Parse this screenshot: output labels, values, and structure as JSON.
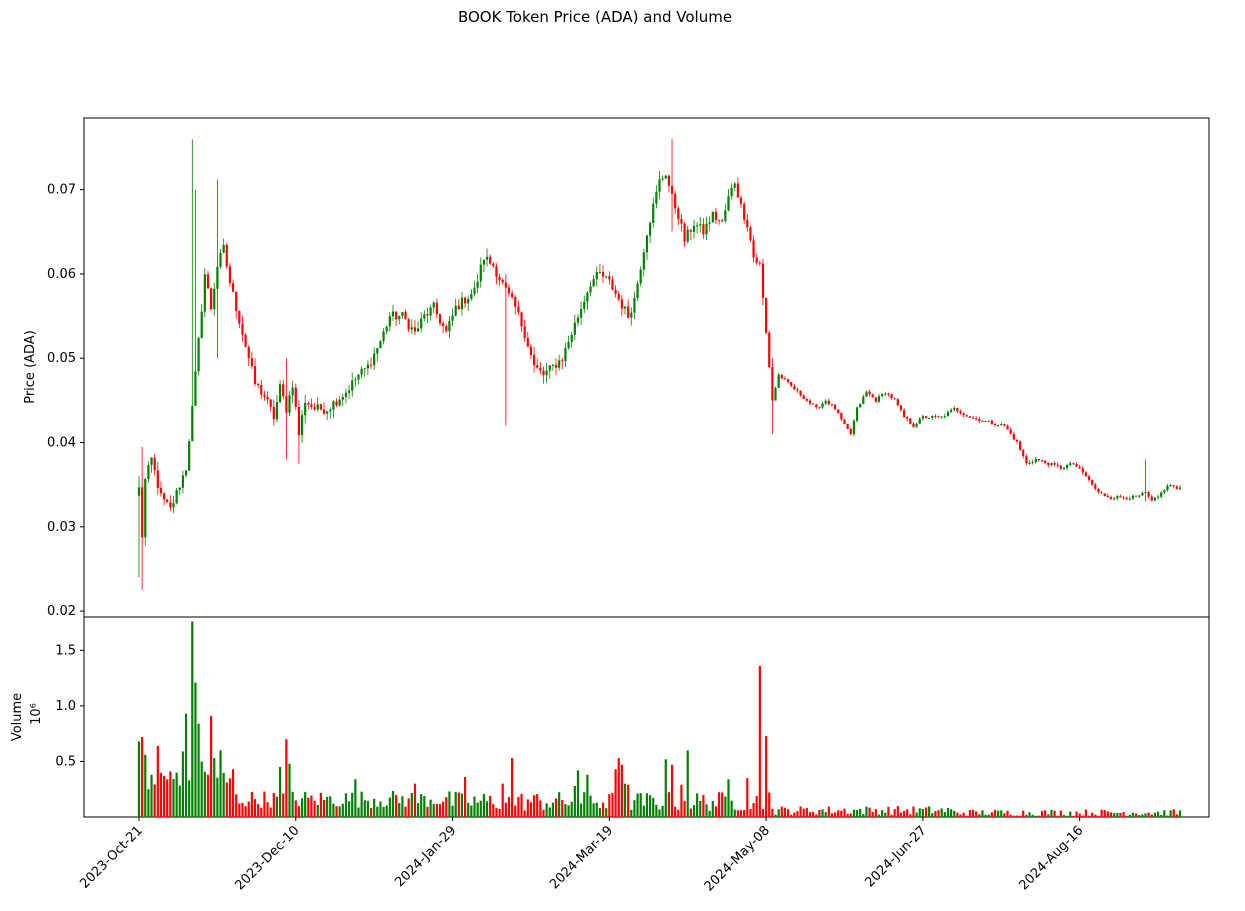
{
  "chart_data": {
    "type": "candlestick",
    "title": "BOOK Token Price (ADA) and Volume",
    "price_panel": {
      "ylabel": "Price (ADA)",
      "ylim": [
        0.0193,
        0.0785
      ],
      "yticks": [
        0.02,
        0.03,
        0.04,
        0.05,
        0.06,
        0.07
      ],
      "ytick_labels": [
        "0.02",
        "0.03",
        "0.04",
        "0.05",
        "0.06",
        "0.07"
      ]
    },
    "volume_panel": {
      "ylabel": "Volume",
      "yoffset_label": "10⁶",
      "ylim": [
        0,
        1.8
      ],
      "yticks": [
        0.5,
        1.0,
        1.5
      ],
      "ytick_labels": [
        "0.5",
        "1.0",
        "1.5"
      ]
    },
    "x_ticks": [
      "2023-Oct-21",
      "2023-Dec-10",
      "2024-Jan-29",
      "2024-Mar-19",
      "2024-May-08",
      "2024-Jun-27",
      "2024-Aug-16"
    ],
    "x_tick_day_index": [
      0,
      50,
      100,
      150,
      200,
      250,
      300
    ],
    "num_days": 333,
    "up_color": "#008000",
    "down_color": "#ff0000",
    "close_anchors": [
      [
        0,
        0.0345
      ],
      [
        1,
        0.029
      ],
      [
        2,
        0.0355
      ],
      [
        4,
        0.038
      ],
      [
        7,
        0.0335
      ],
      [
        10,
        0.032
      ],
      [
        13,
        0.035
      ],
      [
        15,
        0.037
      ],
      [
        17,
        0.044
      ],
      [
        19,
        0.052
      ],
      [
        21,
        0.06
      ],
      [
        23,
        0.056
      ],
      [
        25,
        0.061
      ],
      [
        27,
        0.063
      ],
      [
        29,
        0.059
      ],
      [
        31,
        0.056
      ],
      [
        33,
        0.053
      ],
      [
        35,
        0.05
      ],
      [
        37,
        0.047
      ],
      [
        40,
        0.0455
      ],
      [
        43,
        0.043
      ],
      [
        45,
        0.0465
      ],
      [
        47,
        0.044
      ],
      [
        49,
        0.047
      ],
      [
        51,
        0.041
      ],
      [
        53,
        0.045
      ],
      [
        56,
        0.044
      ],
      [
        60,
        0.044
      ],
      [
        63,
        0.045
      ],
      [
        66,
        0.046
      ],
      [
        70,
        0.048
      ],
      [
        73,
        0.049
      ],
      [
        77,
        0.052
      ],
      [
        80,
        0.055
      ],
      [
        84,
        0.055
      ],
      [
        88,
        0.053
      ],
      [
        91,
        0.055
      ],
      [
        94,
        0.056
      ],
      [
        98,
        0.053
      ],
      [
        101,
        0.056
      ],
      [
        104,
        0.057
      ],
      [
        107,
        0.058
      ],
      [
        110,
        0.062
      ],
      [
        113,
        0.061
      ],
      [
        117,
        0.058
      ],
      [
        120,
        0.056
      ],
      [
        123,
        0.053
      ],
      [
        126,
        0.049
      ],
      [
        129,
        0.048
      ],
      [
        132,
        0.049
      ],
      [
        135,
        0.05
      ],
      [
        138,
        0.053
      ],
      [
        141,
        0.056
      ],
      [
        144,
        0.059
      ],
      [
        147,
        0.06
      ],
      [
        150,
        0.059
      ],
      [
        153,
        0.057
      ],
      [
        156,
        0.055
      ],
      [
        158,
        0.057
      ],
      [
        160,
        0.061
      ],
      [
        162,
        0.065
      ],
      [
        164,
        0.068
      ],
      [
        166,
        0.071
      ],
      [
        168,
        0.072
      ],
      [
        170,
        0.069
      ],
      [
        172,
        0.067
      ],
      [
        174,
        0.064
      ],
      [
        177,
        0.066
      ],
      [
        180,
        0.065
      ],
      [
        183,
        0.067
      ],
      [
        186,
        0.066
      ],
      [
        188,
        0.069
      ],
      [
        190,
        0.071
      ],
      [
        192,
        0.068
      ],
      [
        194,
        0.066
      ],
      [
        196,
        0.062
      ],
      [
        198,
        0.061
      ],
      [
        200,
        0.053
      ],
      [
        202,
        0.045
      ],
      [
        204,
        0.048
      ],
      [
        207,
        0.047
      ],
      [
        210,
        0.046
      ],
      [
        213,
        0.045
      ],
      [
        216,
        0.044
      ],
      [
        219,
        0.045
      ],
      [
        222,
        0.044
      ],
      [
        225,
        0.042
      ],
      [
        227,
        0.041
      ],
      [
        229,
        0.044
      ],
      [
        232,
        0.046
      ],
      [
        235,
        0.045
      ],
      [
        238,
        0.046
      ],
      [
        241,
        0.045
      ],
      [
        244,
        0.043
      ],
      [
        247,
        0.042
      ],
      [
        250,
        0.043
      ],
      [
        256,
        0.043
      ],
      [
        260,
        0.044
      ],
      [
        265,
        0.043
      ],
      [
        270,
        0.0425
      ],
      [
        276,
        0.042
      ],
      [
        280,
        0.04
      ],
      [
        283,
        0.0375
      ],
      [
        286,
        0.038
      ],
      [
        290,
        0.0375
      ],
      [
        294,
        0.037
      ],
      [
        298,
        0.0375
      ],
      [
        302,
        0.036
      ],
      [
        306,
        0.034
      ],
      [
        310,
        0.0335
      ],
      [
        314,
        0.0335
      ],
      [
        318,
        0.0335
      ],
      [
        321,
        0.034
      ],
      [
        323,
        0.033
      ],
      [
        325,
        0.0335
      ],
      [
        327,
        0.0345
      ],
      [
        329,
        0.035
      ],
      [
        331,
        0.0345
      ],
      [
        332,
        0.0345
      ]
    ],
    "volume_spikes": [
      [
        0,
        0.68
      ],
      [
        1,
        0.72
      ],
      [
        2,
        0.56
      ],
      [
        4,
        0.38
      ],
      [
        6,
        0.64
      ],
      [
        8,
        0.37
      ],
      [
        10,
        0.41
      ],
      [
        12,
        0.4
      ],
      [
        14,
        0.59
      ],
      [
        15,
        0.93
      ],
      [
        17,
        1.76
      ],
      [
        18,
        1.21
      ],
      [
        19,
        0.84
      ],
      [
        20,
        0.5
      ],
      [
        22,
        0.38
      ],
      [
        23,
        0.91
      ],
      [
        24,
        0.53
      ],
      [
        26,
        0.6
      ],
      [
        30,
        0.43
      ],
      [
        45,
        0.45
      ],
      [
        47,
        0.7
      ],
      [
        48,
        0.48
      ],
      [
        69,
        0.34
      ],
      [
        88,
        0.3
      ],
      [
        104,
        0.36
      ],
      [
        116,
        0.3
      ],
      [
        119,
        0.53
      ],
      [
        139,
        0.28
      ],
      [
        140,
        0.42
      ],
      [
        143,
        0.38
      ],
      [
        152,
        0.43
      ],
      [
        153,
        0.53
      ],
      [
        154,
        0.47
      ],
      [
        155,
        0.3
      ],
      [
        156,
        0.29
      ],
      [
        168,
        0.52
      ],
      [
        170,
        0.47
      ],
      [
        173,
        0.29
      ],
      [
        175,
        0.6
      ],
      [
        188,
        0.34
      ],
      [
        194,
        0.35
      ],
      [
        198,
        1.36
      ],
      [
        200,
        0.73
      ],
      [
        201,
        0.22
      ]
    ]
  }
}
